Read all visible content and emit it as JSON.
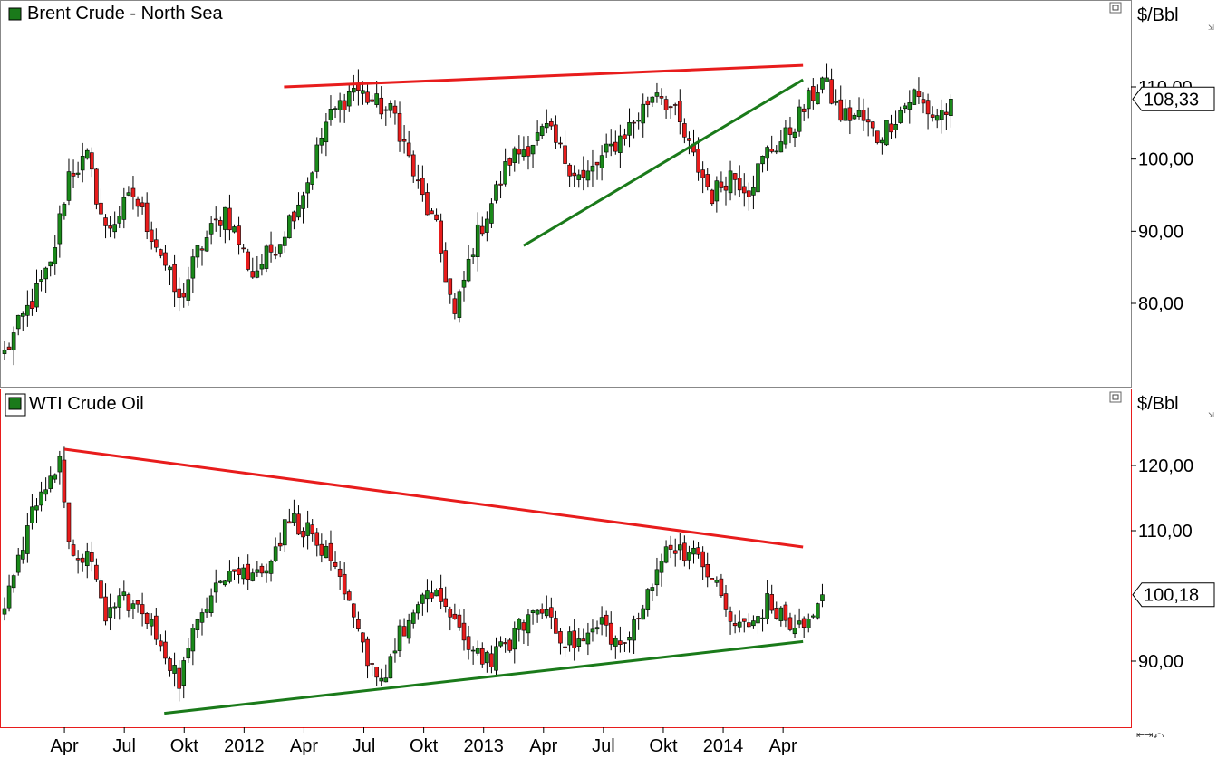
{
  "panels": [
    {
      "title": "Brent Crude - North Sea",
      "unit": "$/Bbl",
      "last_value": "108,33",
      "icon_color": "#1a7a1a",
      "ylim": [
        70,
        120
      ],
      "ticks": [
        "110,00",
        "100,00",
        "90,00",
        "80,00"
      ],
      "tick_values": [
        110,
        100,
        90,
        80
      ],
      "trendlines": [
        {
          "name": "resistance",
          "color": "#e81c1c",
          "from": [
            "2012-03",
            110.0
          ],
          "to": [
            "2014-05",
            113.0
          ]
        },
        {
          "name": "support",
          "color": "#1a7a1a",
          "from": [
            "2013-03",
            88.0
          ],
          "to": [
            "2014-05",
            111.0
          ]
        }
      ]
    },
    {
      "title": "WTI Crude Oil",
      "unit": "$/Bbl",
      "last_value": "100,18",
      "icon_color": "#1a7a1a",
      "ylim": [
        81,
        126
      ],
      "ticks": [
        "120,00",
        "110,00",
        "90,00"
      ],
      "tick_values": [
        120,
        110,
        90
      ],
      "trendlines": [
        {
          "name": "resistance",
          "color": "#e81c1c",
          "from": [
            "2011-04",
            122.5
          ],
          "to": [
            "2014-05",
            107.5
          ]
        },
        {
          "name": "support",
          "color": "#1a7a1a",
          "from": [
            "2011-09",
            82.0
          ],
          "to": [
            "2014-05",
            93.0
          ]
        }
      ]
    }
  ],
  "x_axis": {
    "labels": [
      "Apr",
      "Jul",
      "Okt",
      "2012",
      "Apr",
      "Jul",
      "Okt",
      "2013",
      "Apr",
      "Jul",
      "Okt",
      "2014",
      "Apr"
    ]
  },
  "chart_data": [
    {
      "type": "candlestick",
      "title": "Brent Crude - North Sea",
      "ylabel": "$/Bbl",
      "x_period": "weekly",
      "x_start": "2011-01",
      "last": 108.33,
      "ylim": [
        70,
        120
      ],
      "close_path": [
        [
          0,
          73
        ],
        [
          4,
          78
        ],
        [
          10,
          85
        ],
        [
          14,
          98
        ],
        [
          18,
          100
        ],
        [
          22,
          90
        ],
        [
          28,
          95
        ],
        [
          34,
          87
        ],
        [
          38,
          80
        ],
        [
          42,
          87
        ],
        [
          48,
          93
        ],
        [
          54,
          84
        ],
        [
          60,
          89
        ],
        [
          66,
          97
        ],
        [
          70,
          105
        ],
        [
          76,
          110
        ],
        [
          80,
          108
        ],
        [
          85,
          106
        ],
        [
          90,
          96
        ],
        [
          94,
          90
        ],
        [
          98,
          78
        ],
        [
          102,
          88
        ],
        [
          106,
          94
        ],
        [
          110,
          100
        ],
        [
          114,
          102
        ],
        [
          118,
          104
        ],
        [
          122,
          100
        ],
        [
          126,
          97
        ],
        [
          130,
          100
        ],
        [
          134,
          103
        ],
        [
          138,
          106
        ],
        [
          142,
          110
        ],
        [
          146,
          106
        ],
        [
          150,
          100
        ],
        [
          154,
          95
        ],
        [
          158,
          98
        ],
        [
          162,
          96
        ],
        [
          166,
          101
        ],
        [
          170,
          103
        ],
        [
          174,
          107
        ],
        [
          178,
          111
        ],
        [
          182,
          106
        ],
        [
          186,
          106
        ],
        [
          190,
          103
        ],
        [
          194,
          106
        ],
        [
          198,
          109
        ],
        [
          202,
          106
        ],
        [
          206,
          107
        ]
      ]
    },
    {
      "type": "candlestick",
      "title": "WTI Crude Oil",
      "ylabel": "$/Bbl",
      "x_period": "weekly",
      "x_start": "2011-01",
      "last": 100.18,
      "ylim": [
        81,
        126
      ],
      "close_path": [
        [
          0,
          99
        ],
        [
          4,
          108
        ],
        [
          8,
          117
        ],
        [
          12,
          120
        ],
        [
          14,
          107
        ],
        [
          18,
          106
        ],
        [
          22,
          97
        ],
        [
          26,
          100
        ],
        [
          30,
          97
        ],
        [
          34,
          93
        ],
        [
          38,
          87
        ],
        [
          42,
          96
        ],
        [
          46,
          103
        ],
        [
          50,
          104
        ],
        [
          54,
          103
        ],
        [
          58,
          106
        ],
        [
          62,
          112
        ],
        [
          66,
          110
        ],
        [
          70,
          106
        ],
        [
          74,
          100
        ],
        [
          78,
          92
        ],
        [
          82,
          87
        ],
        [
          86,
          94
        ],
        [
          90,
          98
        ],
        [
          94,
          101
        ],
        [
          98,
          95
        ],
        [
          102,
          92
        ],
        [
          106,
          90
        ],
        [
          110,
          93
        ],
        [
          114,
          97
        ],
        [
          118,
          98
        ],
        [
          122,
          93
        ],
        [
          126,
          93
        ],
        [
          130,
          96
        ],
        [
          134,
          92
        ],
        [
          138,
          96
        ],
        [
          142,
          105
        ],
        [
          146,
          108
        ],
        [
          150,
          106
        ],
        [
          154,
          103
        ],
        [
          158,
          96
        ],
        [
          162,
          95
        ],
        [
          166,
          99
        ],
        [
          170,
          96
        ],
        [
          174,
          95
        ],
        [
          178,
          100
        ]
      ]
    }
  ]
}
